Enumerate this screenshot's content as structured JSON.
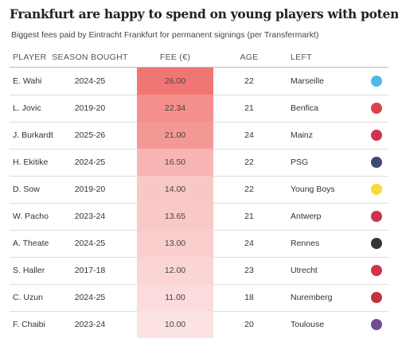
{
  "header": {
    "title": "Frankfurt are happy to spend on young players with potential",
    "subtitle": "Biggest fees paid by Eintracht Frankfurt for permanent signings (per Transfermarkt)"
  },
  "table": {
    "columns": [
      "PLAYER",
      "SEASON BOUGHT",
      "FEE (€)",
      "AGE",
      "LEFT"
    ],
    "rows": [
      [
        "E. Wahi",
        "2024-25",
        "26.00",
        "22",
        "Marseille"
      ],
      [
        "L. Jovic",
        "2019-20",
        "22.34",
        "21",
        "Benfica"
      ],
      [
        "J. Burkardt",
        "2025-26",
        "21.00",
        "24",
        "Mainz"
      ],
      [
        "H. Ekitike",
        "2024-25",
        "16.50",
        "22",
        "PSG"
      ],
      [
        "D. Sow",
        "2019-20",
        "14.00",
        "22",
        "Young Boys"
      ],
      [
        "W. Pacho",
        "2023-24",
        "13.65",
        "21",
        "Antwerp"
      ],
      [
        "A. Theate",
        "2024-25",
        "13.00",
        "24",
        "Rennes"
      ],
      [
        "S. Haller",
        "2017-18",
        "12.00",
        "23",
        "Utrecht"
      ],
      [
        "C. Uzun",
        "2024-25",
        "11.00",
        "18",
        "Nuremberg"
      ],
      [
        "F. Chaibi",
        "2023-24",
        "10.00",
        "20",
        "Toulouse"
      ]
    ]
  }
}
